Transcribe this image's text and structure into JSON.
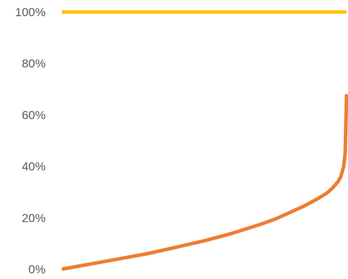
{
  "chart_data": {
    "type": "line",
    "title": "",
    "xlabel": "",
    "ylabel": "",
    "ylim": [
      0,
      1
    ],
    "y_ticks": [
      {
        "value": 0,
        "label": "0%"
      },
      {
        "value": 0.2,
        "label": "20%"
      },
      {
        "value": 0.4,
        "label": "40%"
      },
      {
        "value": 0.6,
        "label": "60%"
      },
      {
        "value": 0.8,
        "label": "80%"
      },
      {
        "value": 1.0,
        "label": "100%"
      }
    ],
    "grid": false,
    "legend": "none",
    "xlim": [
      0,
      1
    ],
    "series": [
      {
        "color": "#FFC000",
        "x": [
          0,
          1
        ],
        "y": [
          1.0,
          1.0
        ]
      },
      {
        "color": "#ED7D31",
        "x": [
          0.0,
          0.1,
          0.2,
          0.3,
          0.4,
          0.5,
          0.6,
          0.7,
          0.75,
          0.8,
          0.85,
          0.9,
          0.93,
          0.95,
          0.97,
          0.98,
          0.99,
          0.995,
          1.0
        ],
        "y": [
          0.0,
          0.02,
          0.04,
          0.06,
          0.085,
          0.11,
          0.14,
          0.175,
          0.195,
          0.22,
          0.245,
          0.275,
          0.295,
          0.315,
          0.34,
          0.36,
          0.4,
          0.45,
          0.68
        ]
      }
    ]
  }
}
